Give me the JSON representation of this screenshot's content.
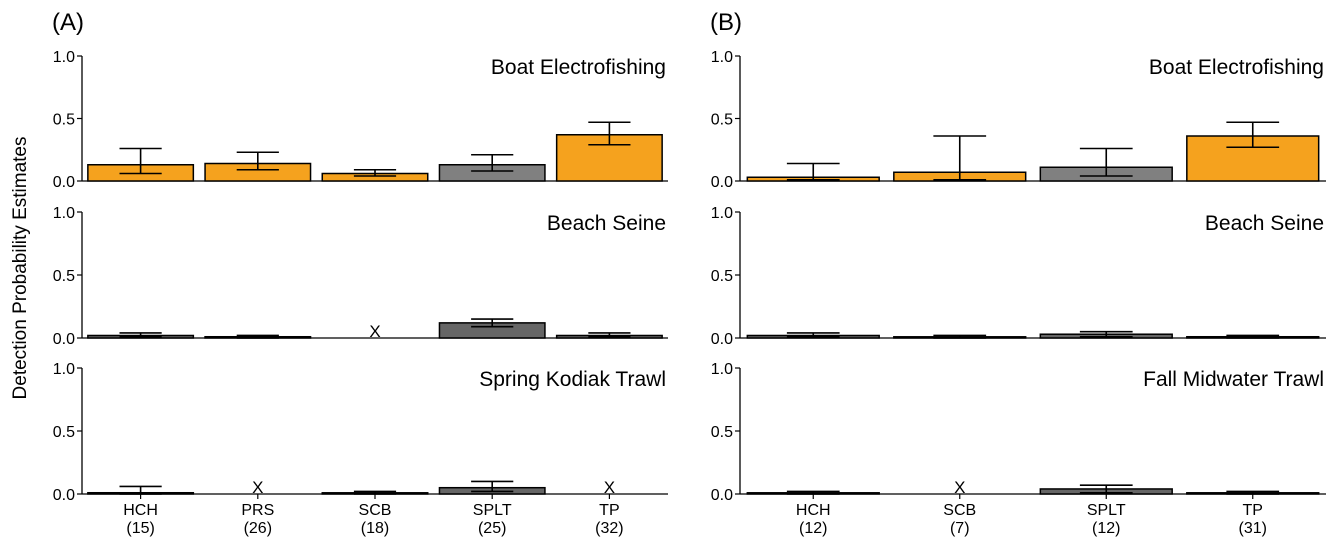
{
  "figure": {
    "ylabel": "Detection Probability Estimates",
    "colors": {
      "orange": "#F5A21E",
      "gray": "#808080",
      "darkgray": "#666666",
      "outline": "#000000",
      "errorbar": "#000000"
    }
  },
  "chart_data": [
    {
      "type": "bar",
      "panel_label": "(A)",
      "title": "Boat Electrofishing",
      "categories": [
        "HCH\n(15)",
        "PRS\n(26)",
        "SCB\n(18)",
        "SPLT\n(25)",
        "TP\n(32)"
      ],
      "values": [
        0.13,
        0.14,
        0.06,
        0.13,
        0.37
      ],
      "err_low": [
        0.06,
        0.09,
        0.04,
        0.08,
        0.29
      ],
      "err_high": [
        0.26,
        0.23,
        0.09,
        0.21,
        0.47
      ],
      "missing": [
        false,
        false,
        false,
        false,
        false
      ],
      "bar_colors": [
        "orange",
        "orange",
        "orange",
        "gray",
        "orange"
      ],
      "ylim": [
        0,
        1
      ],
      "yticks": [
        "0.0",
        "0.5",
        "1.0"
      ]
    },
    {
      "type": "bar",
      "panel_label": "",
      "title": "Beach Seine",
      "categories": [
        "HCH\n(15)",
        "PRS\n(26)",
        "SCB\n(18)",
        "SPLT\n(25)",
        "TP\n(32)"
      ],
      "values": [
        0.02,
        0.01,
        0,
        0.12,
        0.02
      ],
      "err_low": [
        0.01,
        0.0,
        0,
        0.09,
        0.01
      ],
      "err_high": [
        0.04,
        0.02,
        0,
        0.15,
        0.04
      ],
      "missing": [
        false,
        false,
        true,
        false,
        false
      ],
      "bar_colors": [
        "darkgray",
        "darkgray",
        "darkgray",
        "darkgray",
        "darkgray"
      ],
      "ylim": [
        0,
        1
      ],
      "yticks": [
        "0.0",
        "0.5",
        "1.0"
      ]
    },
    {
      "type": "bar",
      "panel_label": "",
      "title": "Spring Kodiak Trawl",
      "categories": [
        "HCH\n(15)",
        "PRS\n(26)",
        "SCB\n(18)",
        "SPLT\n(25)",
        "TP\n(32)"
      ],
      "values": [
        0.01,
        0,
        0.005,
        0.05,
        0
      ],
      "err_low": [
        0.0,
        0,
        0.0,
        0.02,
        0
      ],
      "err_high": [
        0.06,
        0,
        0.02,
        0.1,
        0
      ],
      "missing": [
        false,
        true,
        false,
        false,
        true
      ],
      "bar_colors": [
        "darkgray",
        "darkgray",
        "darkgray",
        "darkgray",
        "darkgray"
      ],
      "ylim": [
        0,
        1
      ],
      "yticks": [
        "0.0",
        "0.5",
        "1.0"
      ]
    },
    {
      "type": "bar",
      "panel_label": "(B)",
      "title": "Boat Electrofishing",
      "categories": [
        "HCH\n(12)",
        "SCB\n(7)",
        "SPLT\n(12)",
        "TP\n(31)"
      ],
      "values": [
        0.03,
        0.07,
        0.11,
        0.36
      ],
      "err_low": [
        0.01,
        0.01,
        0.04,
        0.27
      ],
      "err_high": [
        0.14,
        0.36,
        0.26,
        0.47
      ],
      "missing": [
        false,
        false,
        false,
        false
      ],
      "bar_colors": [
        "orange",
        "orange",
        "gray",
        "orange"
      ],
      "ylim": [
        0,
        1
      ],
      "yticks": [
        "0.0",
        "0.5",
        "1.0"
      ]
    },
    {
      "type": "bar",
      "panel_label": "",
      "title": "Beach Seine",
      "categories": [
        "HCH\n(12)",
        "SCB\n(7)",
        "SPLT\n(12)",
        "TP\n(31)"
      ],
      "values": [
        0.02,
        0.005,
        0.03,
        0.01
      ],
      "err_low": [
        0.01,
        0.0,
        0.01,
        0.0
      ],
      "err_high": [
        0.04,
        0.02,
        0.05,
        0.02
      ],
      "missing": [
        false,
        false,
        false,
        false
      ],
      "bar_colors": [
        "darkgray",
        "darkgray",
        "darkgray",
        "darkgray"
      ],
      "ylim": [
        0,
        1
      ],
      "yticks": [
        "0.0",
        "0.5",
        "1.0"
      ]
    },
    {
      "type": "bar",
      "panel_label": "",
      "title": "Fall Midwater Trawl",
      "categories": [
        "HCH\n(12)",
        "SCB\n(7)",
        "SPLT\n(12)",
        "TP\n(31)"
      ],
      "values": [
        0.005,
        0,
        0.04,
        0.005
      ],
      "err_low": [
        0.0,
        0,
        0.01,
        0.0
      ],
      "err_high": [
        0.02,
        0,
        0.07,
        0.02
      ],
      "missing": [
        false,
        true,
        false,
        false
      ],
      "bar_colors": [
        "darkgray",
        "darkgray",
        "darkgray",
        "darkgray"
      ],
      "ylim": [
        0,
        1
      ],
      "yticks": [
        "0.0",
        "0.5",
        "1.0"
      ]
    }
  ]
}
